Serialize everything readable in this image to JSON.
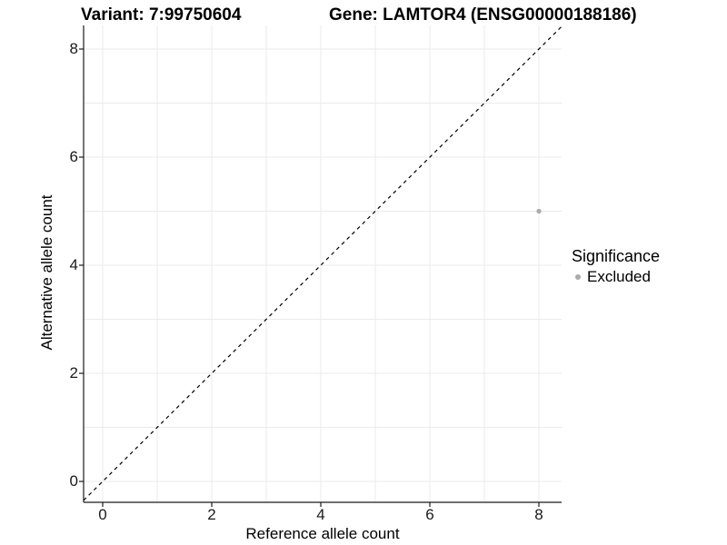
{
  "titles": {
    "variant": "Variant: 7:99750604",
    "gene": "Gene: LAMTOR4 (ENSG00000188186)"
  },
  "chart_data": {
    "type": "scatter",
    "title_left": "Variant: 7:99750604",
    "title_right": "Gene: LAMTOR4 (ENSG00000188186)",
    "xlabel": "Reference allele count",
    "ylabel": "Alternative allele count",
    "xlim": [
      -0.35,
      8.42
    ],
    "ylim": [
      -0.39,
      8.44
    ],
    "xticks": [
      0,
      2,
      4,
      6,
      8
    ],
    "yticks": [
      0,
      2,
      4,
      6,
      8
    ],
    "grid": "on",
    "gridline_step": 1,
    "series": [
      {
        "name": "Excluded",
        "color": "#aaaaaa",
        "points": [
          {
            "x": 8,
            "y": 5
          }
        ]
      }
    ],
    "reference_line": {
      "type": "identity",
      "style": "dashed",
      "color": "#000000"
    },
    "legend": {
      "title": "Significance",
      "position": "right",
      "entries": [
        {
          "label": "Excluded",
          "color": "#aaaaaa"
        }
      ]
    }
  },
  "colors": {
    "background": "#ffffff",
    "gridline": "#ebebeb",
    "axis_line": "#1a1a1a",
    "tick_mark": "#1a1a1a",
    "text": "#000000",
    "point": "#aaaaaa"
  }
}
